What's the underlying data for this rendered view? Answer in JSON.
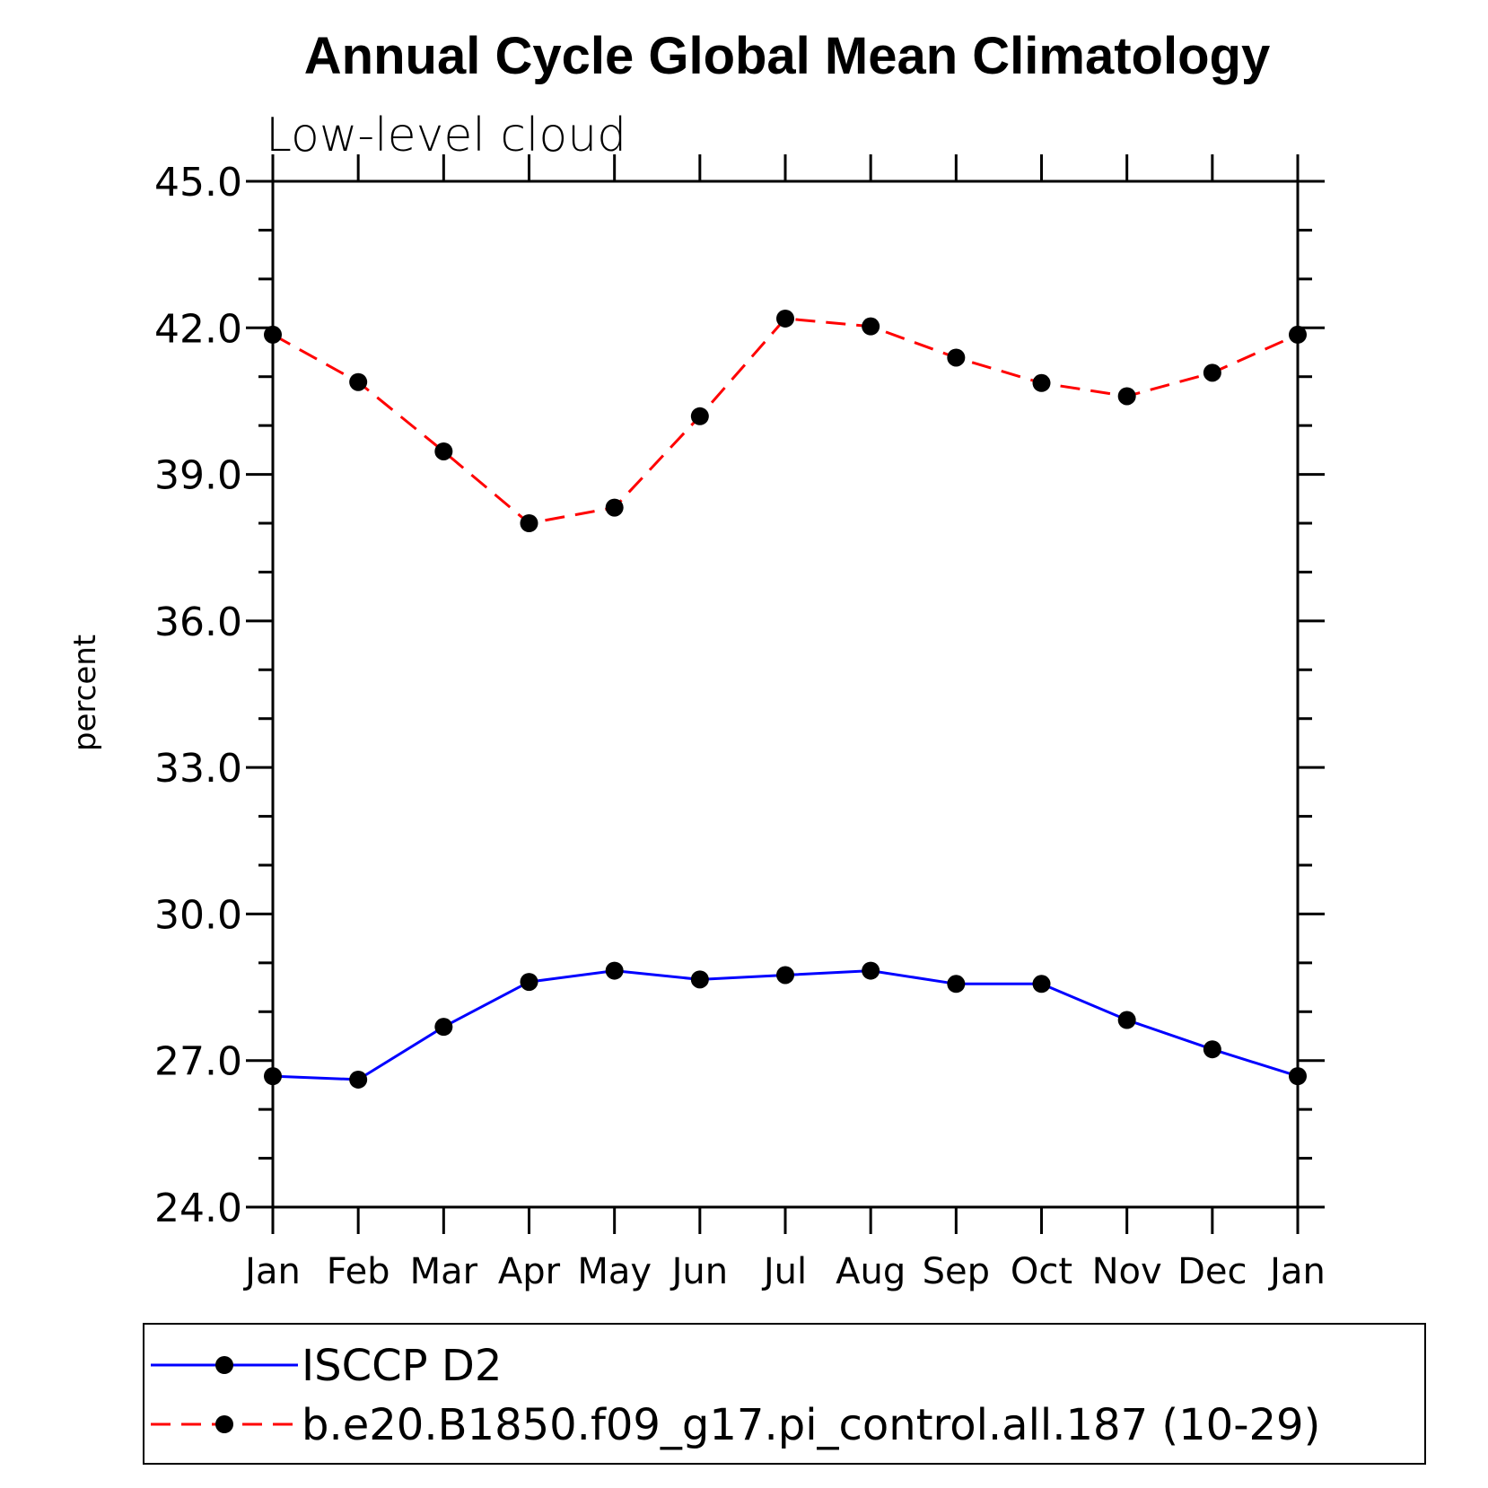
{
  "chart_data": {
    "type": "line",
    "title": "Annual Cycle Global Mean Climatology",
    "subtitle": "Low-level cloud",
    "xlabel": "",
    "ylabel": "percent",
    "ylim": [
      24.0,
      45.0
    ],
    "y_major_ticks": [
      "24.0",
      "27.0",
      "30.0",
      "33.0",
      "36.0",
      "39.0",
      "42.0",
      "45.0"
    ],
    "y_minor_step": 1.0,
    "categories": [
      "Jan",
      "Feb",
      "Mar",
      "Apr",
      "May",
      "Jun",
      "Jul",
      "Aug",
      "Sep",
      "Oct",
      "Nov",
      "Dec",
      "Jan"
    ],
    "grid": false,
    "legend_position": "bottom",
    "series": [
      {
        "name": "ISCCP D2",
        "color": "#0000ff",
        "line_style": "solid",
        "marker": "filled-circle",
        "values": [
          26.68,
          26.61,
          27.69,
          28.61,
          28.84,
          28.66,
          28.75,
          28.84,
          28.57,
          28.57,
          27.83,
          27.23,
          26.68
        ]
      },
      {
        "name": "b.e20.B1850.f09_g17.pi_control.all.187 (10-29)",
        "color": "#ff0000",
        "line_style": "dashed",
        "marker": "filled-circle",
        "values": [
          41.86,
          40.89,
          39.47,
          38.0,
          38.32,
          40.19,
          42.19,
          42.03,
          41.39,
          40.87,
          40.6,
          41.08,
          41.86
        ]
      }
    ]
  }
}
